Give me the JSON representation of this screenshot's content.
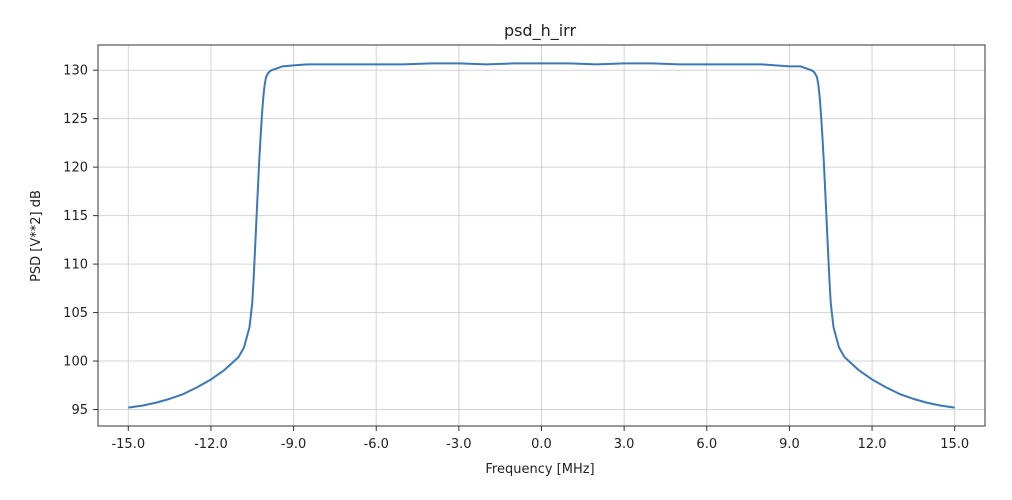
{
  "chart_data": {
    "type": "line",
    "title": "psd_h_irr",
    "xlabel": "Frequency [MHz]",
    "ylabel": "PSD [V**2] dB",
    "xlim": [
      -16.1,
      16.1
    ],
    "ylim": [
      93.3,
      132.6
    ],
    "xticks": [
      -15.0,
      -12.0,
      -9.0,
      -6.0,
      -3.0,
      0.0,
      3.0,
      6.0,
      9.0,
      12.0,
      15.0
    ],
    "xtick_labels": [
      "-15.0",
      "-12.0",
      "-9.0",
      "-6.0",
      "-3.0",
      "0.0",
      "3.0",
      "6.0",
      "9.0",
      "12.0",
      "15.0"
    ],
    "yticks": [
      95,
      100,
      105,
      110,
      115,
      120,
      125,
      130
    ],
    "ytick_labels": [
      "95",
      "100",
      "105",
      "110",
      "115",
      "120",
      "125",
      "130"
    ],
    "grid": true,
    "colors": {
      "line": "#3b78b5",
      "grid": "#d3d3d3",
      "axes": "#333333"
    },
    "series": [
      {
        "x": [
          -15.0,
          -14.5,
          -14.0,
          -13.5,
          -13.0,
          -12.5,
          -12.0,
          -11.5,
          -11.0,
          -10.8,
          -10.6,
          -10.5,
          -10.45,
          -10.4,
          -10.35,
          -10.3,
          -10.25,
          -10.2,
          -10.15,
          -10.1,
          -10.05,
          -10.0,
          -9.9,
          -9.8,
          -9.6,
          -9.4,
          -9.0,
          -8.5,
          -8.0,
          -7.0,
          -6.0,
          -5.0,
          -4.0,
          -3.0,
          -2.0,
          -1.0,
          0.0,
          1.0,
          2.0,
          3.0,
          4.0,
          5.0,
          6.0,
          7.0,
          8.0,
          8.5,
          9.0,
          9.4,
          9.6,
          9.8,
          9.9,
          10.0,
          10.05,
          10.1,
          10.15,
          10.2,
          10.25,
          10.3,
          10.35,
          10.4,
          10.45,
          10.5,
          10.6,
          10.8,
          11.0,
          11.5,
          12.0,
          12.5,
          13.0,
          13.5,
          14.0,
          14.5,
          15.0
        ],
        "y": [
          95.2,
          95.4,
          95.7,
          96.1,
          96.6,
          97.3,
          98.1,
          99.1,
          100.4,
          101.4,
          103.5,
          106.0,
          108.5,
          111.5,
          114.5,
          117.5,
          120.5,
          123.0,
          125.3,
          127.2,
          128.5,
          129.3,
          129.8,
          130.0,
          130.2,
          130.4,
          130.5,
          130.6,
          130.6,
          130.6,
          130.6,
          130.6,
          130.7,
          130.7,
          130.6,
          130.7,
          130.7,
          130.7,
          130.6,
          130.7,
          130.7,
          130.6,
          130.6,
          130.6,
          130.6,
          130.5,
          130.4,
          130.4,
          130.2,
          130.0,
          129.8,
          129.3,
          128.5,
          127.2,
          125.3,
          123.0,
          120.5,
          117.5,
          114.5,
          111.5,
          108.5,
          106.0,
          103.5,
          101.4,
          100.4,
          99.1,
          98.1,
          97.3,
          96.6,
          96.1,
          95.7,
          95.4,
          95.2
        ]
      }
    ]
  }
}
